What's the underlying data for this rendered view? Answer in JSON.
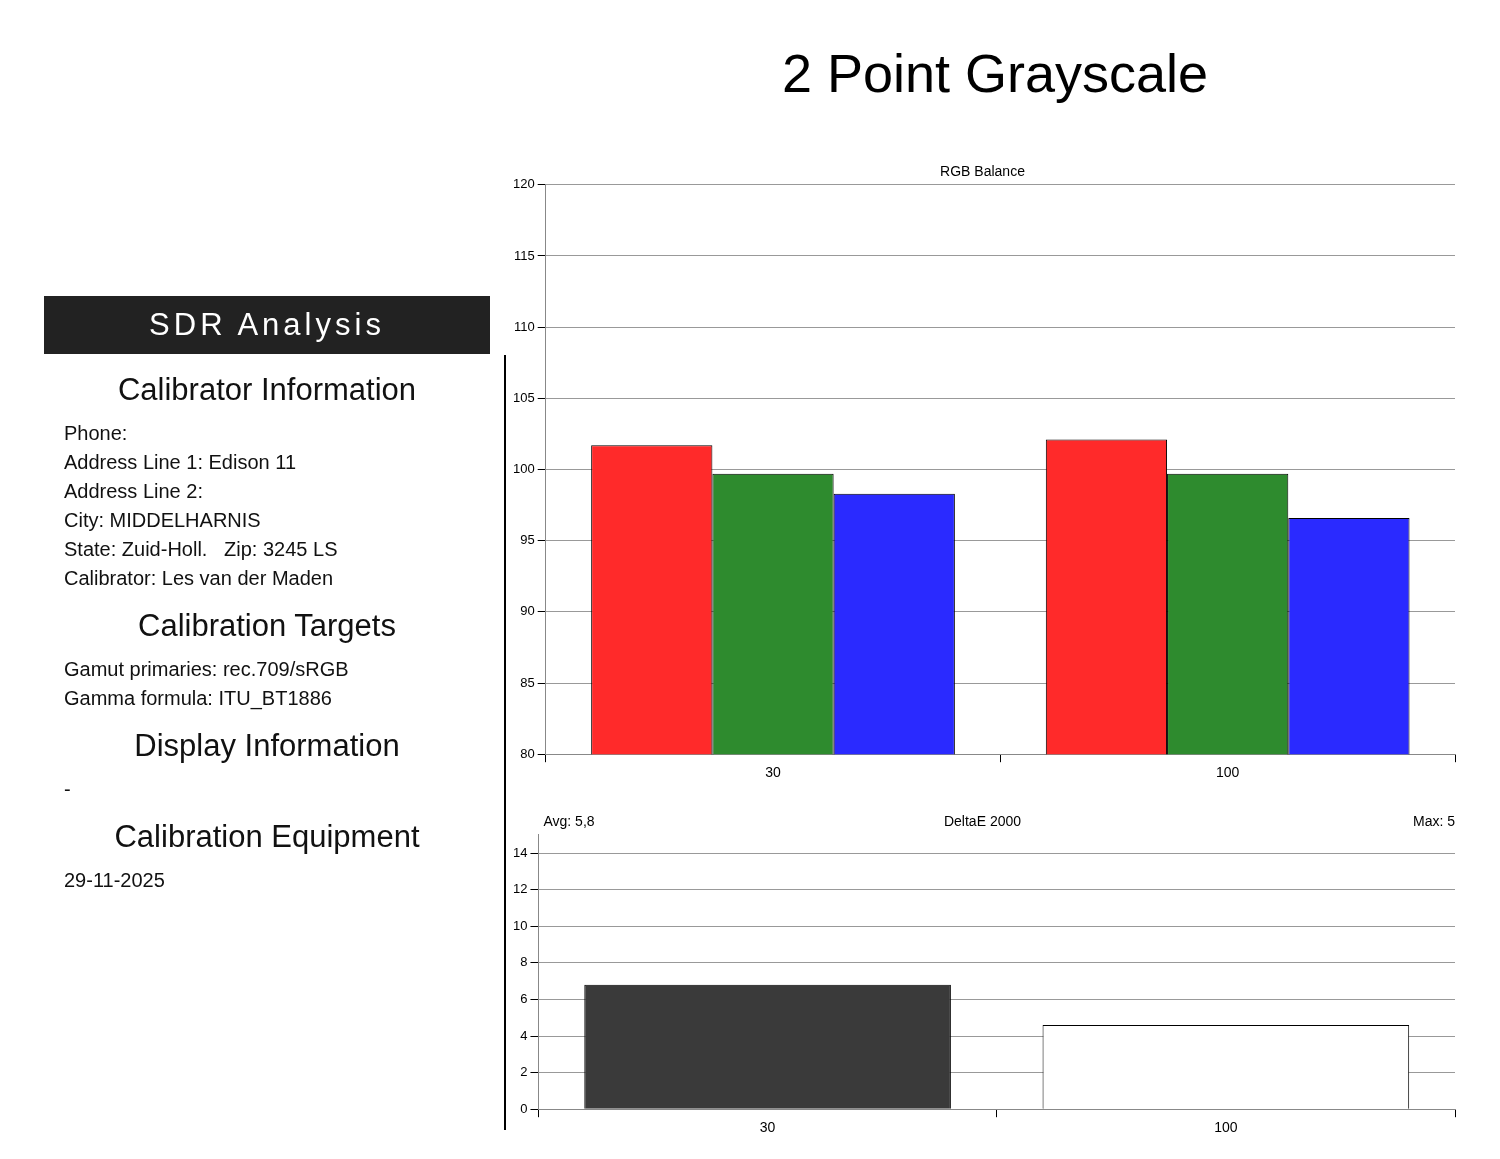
{
  "chart_data": [
    {
      "type": "other",
      "title": "SDR Analysis"
    },
    {
      "type": "other",
      "title": "Calibrator Information",
      "annotations": [
        "Phone:",
        "Address Line 1: Edison 11",
        "Address Line 2:",
        "City: MIDDELHARNIS",
        "State: Zuid-Holl.   Zip: 3245 LS",
        "Calibrator: Les van der Maden"
      ]
    },
    {
      "type": "other",
      "title": "Calibration Targets",
      "annotations": [
        "Gamut primaries: rec.709/sRGB",
        "Gamma formula: ITU_BT1886"
      ]
    },
    {
      "type": "other",
      "title": "Display Information",
      "annotations": [
        "-"
      ]
    },
    {
      "type": "other",
      "title": "Calibration Equipment",
      "annotations": [
        "29-11-2025"
      ]
    },
    {
      "type": "bar",
      "title": "2 Point Grayscale",
      "subtitle": "RGB Balance",
      "categories": [
        "30",
        "100"
      ],
      "series": [
        {
          "color": "#ff2a2a",
          "values": [
            101.7,
            102.1
          ]
        },
        {
          "color": "#2e8b2e",
          "values": [
            99.7,
            99.7
          ]
        },
        {
          "color": "#2a2aff",
          "values": [
            98.3,
            96.6
          ]
        }
      ],
      "ylim": [
        80,
        120
      ],
      "yticks": [
        80,
        85,
        90,
        95,
        100,
        105,
        110,
        115,
        120
      ],
      "grid": "y",
      "legend": false
    },
    {
      "type": "bar",
      "title": "DeltaE 2000",
      "categories": [
        "30",
        "100"
      ],
      "values": [
        6.8,
        4.6
      ],
      "colors": [
        "#3a3a3a",
        "#ffffff"
      ],
      "ylim": [
        0,
        15
      ],
      "yticks": [
        0,
        2,
        4,
        6,
        8,
        10,
        12,
        14
      ],
      "grid": "y",
      "legend": false,
      "annotations": [
        "Avg: 5,8",
        "Max: 5"
      ]
    }
  ]
}
